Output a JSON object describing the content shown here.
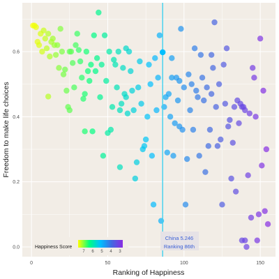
{
  "chart_data": {
    "type": "scatter",
    "xlabel": "Ranking of Happiness",
    "ylabel": "Freedom to make life choices",
    "xlim": [
      -6,
      160
    ],
    "ylim": [
      -0.03,
      0.75
    ],
    "x_ticks": [
      0,
      50,
      100,
      150
    ],
    "y_ticks": [
      0.0,
      0.2,
      0.4,
      0.6
    ],
    "y_tick_labels": [
      "0.0",
      "0.2",
      "0.4",
      "0.6"
    ],
    "grid": true,
    "background": "#f2ede6",
    "grid_color": "#ffffff",
    "point_opacity": 0.7,
    "color_scale": {
      "name": "Happiness Score",
      "labels": [
        "7",
        "6",
        "5",
        "4",
        "3"
      ],
      "colors": [
        "#ffff00",
        "#00ff7f",
        "#00bfff",
        "#4169e1",
        "#8a2be2"
      ]
    },
    "highlight": {
      "x": 86,
      "y": 0.598,
      "line_color": "#3fd1f0",
      "label_lines": [
        "China 5.246",
        "Ranking 86th"
      ]
    },
    "points": [
      {
        "x": 1,
        "y": 0.68
      },
      {
        "x": 2,
        "y": 0.68
      },
      {
        "x": 3,
        "y": 0.675
      },
      {
        "x": 4,
        "y": 0.63
      },
      {
        "x": 5,
        "y": 0.62
      },
      {
        "x": 6,
        "y": 0.655
      },
      {
        "x": 7,
        "y": 0.6
      },
      {
        "x": 8,
        "y": 0.665
      },
      {
        "x": 9,
        "y": 0.64
      },
      {
        "x": 10,
        "y": 0.61
      },
      {
        "x": 11,
        "y": 0.655
      },
      {
        "x": 12,
        "y": 0.585
      },
      {
        "x": 13,
        "y": 0.63
      },
      {
        "x": 14,
        "y": 0.64
      },
      {
        "x": 15,
        "y": 0.62
      },
      {
        "x": 16,
        "y": 0.59
      },
      {
        "x": 17,
        "y": 0.62
      },
      {
        "x": 18,
        "y": 0.55
      },
      {
        "x": 19,
        "y": 0.67
      },
      {
        "x": 20,
        "y": 0.6
      },
      {
        "x": 11,
        "y": 0.462
      },
      {
        "x": 21,
        "y": 0.53
      },
      {
        "x": 22,
        "y": 0.545
      },
      {
        "x": 23,
        "y": 0.48
      },
      {
        "x": 24,
        "y": 0.43
      },
      {
        "x": 25,
        "y": 0.42
      },
      {
        "x": 26,
        "y": 0.6
      },
      {
        "x": 27,
        "y": 0.565
      },
      {
        "x": 28,
        "y": 0.49
      },
      {
        "x": 29,
        "y": 0.62
      },
      {
        "x": 30,
        "y": 0.655
      },
      {
        "x": 31,
        "y": 0.605
      },
      {
        "x": 32,
        "y": 0.57
      },
      {
        "x": 33,
        "y": 0.52
      },
      {
        "x": 34,
        "y": 0.455
      },
      {
        "x": 35,
        "y": 0.355
      },
      {
        "x": 36,
        "y": 0.6
      },
      {
        "x": 37,
        "y": 0.54
      },
      {
        "x": 38,
        "y": 0.51
      },
      {
        "x": 39,
        "y": 0.56
      },
      {
        "x": 40,
        "y": 0.355
      },
      {
        "x": 41,
        "y": 0.65
      },
      {
        "x": 42,
        "y": 0.54
      },
      {
        "x": 43,
        "y": 0.58
      },
      {
        "x": 44,
        "y": 0.72
      },
      {
        "x": 45,
        "y": 0.46
      },
      {
        "x": 46,
        "y": 0.56
      },
      {
        "x": 47,
        "y": 0.28
      },
      {
        "x": 48,
        "y": 0.65
      },
      {
        "x": 49,
        "y": 0.51
      },
      {
        "x": 50,
        "y": 0.35
      },
      {
        "x": 51,
        "y": 0.6
      },
      {
        "x": 52,
        "y": 0.36
      },
      {
        "x": 53,
        "y": 0.43
      },
      {
        "x": 54,
        "y": 0.575
      },
      {
        "x": 55,
        "y": 0.56
      },
      {
        "x": 56,
        "y": 0.49
      },
      {
        "x": 57,
        "y": 0.6
      },
      {
        "x": 58,
        "y": 0.245
      },
      {
        "x": 59,
        "y": 0.44
      },
      {
        "x": 60,
        "y": 0.55
      },
      {
        "x": 61,
        "y": 0.47
      },
      {
        "x": 62,
        "y": 0.46
      },
      {
        "x": 63,
        "y": 0.41
      },
      {
        "x": 64,
        "y": 0.6
      },
      {
        "x": 65,
        "y": 0.54
      },
      {
        "x": 66,
        "y": 0.48
      },
      {
        "x": 67,
        "y": 0.42
      },
      {
        "x": 68,
        "y": 0.21
      },
      {
        "x": 69,
        "y": 0.26
      },
      {
        "x": 70,
        "y": 0.49
      },
      {
        "x": 71,
        "y": 0.57
      },
      {
        "x": 72,
        "y": 0.44
      },
      {
        "x": 73,
        "y": 0.3
      },
      {
        "x": 74,
        "y": 0.31
      },
      {
        "x": 75,
        "y": 0.33
      },
      {
        "x": 76,
        "y": 0.4
      },
      {
        "x": 77,
        "y": 0.56
      },
      {
        "x": 78,
        "y": 0.5
      },
      {
        "x": 79,
        "y": 0.28
      },
      {
        "x": 80,
        "y": 0.13
      },
      {
        "x": 81,
        "y": 0.58
      },
      {
        "x": 82,
        "y": 0.42
      },
      {
        "x": 83,
        "y": 0.52
      },
      {
        "x": 84,
        "y": 0.65
      },
      {
        "x": 85,
        "y": 0.08
      },
      {
        "x": 86,
        "y": 0.598
      },
      {
        "x": 87,
        "y": 0.43
      },
      {
        "x": 88,
        "y": 0.46
      },
      {
        "x": 89,
        "y": 0.29
      },
      {
        "x": 90,
        "y": 0.47
      },
      {
        "x": 91,
        "y": 0.4
      },
      {
        "x": 92,
        "y": 0.52
      },
      {
        "x": 93,
        "y": 0.28
      },
      {
        "x": 94,
        "y": 0.38
      },
      {
        "x": 95,
        "y": 0.52
      },
      {
        "x": 96,
        "y": 0.45
      },
      {
        "x": 97,
        "y": 0.51
      },
      {
        "x": 98,
        "y": 0.67
      },
      {
        "x": 99,
        "y": 0.36
      },
      {
        "x": 100,
        "y": 0.49
      },
      {
        "x": 101,
        "y": 0.13
      },
      {
        "x": 102,
        "y": 0.27
      },
      {
        "x": 103,
        "y": 0.53
      },
      {
        "x": 104,
        "y": 0.42
      },
      {
        "x": 105,
        "y": 0.5
      },
      {
        "x": 106,
        "y": 0.36
      },
      {
        "x": 107,
        "y": 0.61
      },
      {
        "x": 108,
        "y": 0.48
      },
      {
        "x": 109,
        "y": 0.46
      },
      {
        "x": 110,
        "y": 0.28
      },
      {
        "x": 111,
        "y": 0.59
      },
      {
        "x": 112,
        "y": 0.52
      },
      {
        "x": 113,
        "y": 0.45
      },
      {
        "x": 114,
        "y": 0.23
      },
      {
        "x": 115,
        "y": 0.49
      },
      {
        "x": 116,
        "y": 0.31
      },
      {
        "x": 117,
        "y": 0.36
      },
      {
        "x": 118,
        "y": 0.47
      },
      {
        "x": 119,
        "y": 0.55
      },
      {
        "x": 120,
        "y": 0.69
      },
      {
        "x": 121,
        "y": 0.43
      },
      {
        "x": 122,
        "y": 0.31
      },
      {
        "x": 123,
        "y": 0.5
      },
      {
        "x": 124,
        "y": 0.33
      },
      {
        "x": 125,
        "y": 0.13
      },
      {
        "x": 126,
        "y": 0.56
      },
      {
        "x": 127,
        "y": 0.44
      },
      {
        "x": 128,
        "y": 0.61
      },
      {
        "x": 129,
        "y": 0.37
      },
      {
        "x": 130,
        "y": 0.39
      },
      {
        "x": 131,
        "y": 0.21
      },
      {
        "x": 132,
        "y": 0.32
      },
      {
        "x": 133,
        "y": 0.43
      },
      {
        "x": 134,
        "y": 0.17
      },
      {
        "x": 135,
        "y": 0.45
      },
      {
        "x": 136,
        "y": 0.38
      },
      {
        "x": 137,
        "y": 0.44
      },
      {
        "x": 138,
        "y": 0.02
      },
      {
        "x": 139,
        "y": 0.43
      },
      {
        "x": 140,
        "y": 0.42
      },
      {
        "x": 141,
        "y": 0.0
      },
      {
        "x": 142,
        "y": 0.22
      },
      {
        "x": 143,
        "y": 0.41
      },
      {
        "x": 144,
        "y": 0.09
      },
      {
        "x": 145,
        "y": 0.55
      },
      {
        "x": 146,
        "y": 0.52
      },
      {
        "x": 147,
        "y": 0.4
      },
      {
        "x": 148,
        "y": 0.02
      },
      {
        "x": 149,
        "y": 0.1
      },
      {
        "x": 150,
        "y": 0.64
      },
      {
        "x": 151,
        "y": 0.25
      },
      {
        "x": 152,
        "y": 0.48
      },
      {
        "x": 153,
        "y": 0.11
      },
      {
        "x": 154,
        "y": 0.3
      },
      {
        "x": 155,
        "y": 0.07
      },
      {
        "x": 35,
        "y": 0.47
      },
      {
        "x": 25,
        "y": 0.6
      },
      {
        "x": 62,
        "y": 0.61
      },
      {
        "x": 92,
        "y": 0.58
      },
      {
        "x": 118,
        "y": 0.59
      },
      {
        "x": 97,
        "y": 0.37
      },
      {
        "x": 138,
        "y": 0.43
      },
      {
        "x": 58,
        "y": 0.42
      },
      {
        "x": 140,
        "y": 0.02
      }
    ]
  }
}
